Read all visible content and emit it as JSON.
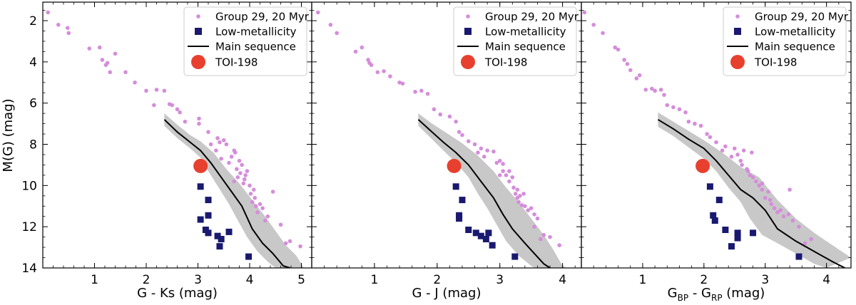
{
  "chart_data": [
    {
      "type": "scatter",
      "id": "panel-gks",
      "xlabel": "G - Ks (mag)",
      "ylabel": "M(G) (mag)",
      "xlim": [
        0,
        5.2
      ],
      "ylim": [
        14,
        1.1
      ],
      "xticks": [
        "1",
        "2",
        "3",
        "4",
        "5"
      ],
      "yticks": [
        "2",
        "4",
        "6",
        "8",
        "10",
        "12",
        "14"
      ],
      "legend": [
        "Group 29, 20 Myr",
        "Low-metallicity",
        "Main sequence",
        "TOI-198"
      ],
      "group29": [
        [
          0.1,
          1.6
        ],
        [
          0.3,
          2.2
        ],
        [
          0.48,
          2.35
        ],
        [
          0.5,
          2.6
        ],
        [
          0.9,
          3.35
        ],
        [
          1.1,
          3.3
        ],
        [
          1.15,
          3.9
        ],
        [
          1.22,
          4.15
        ],
        [
          1.25,
          4.05
        ],
        [
          1.3,
          4.5
        ],
        [
          1.4,
          3.6
        ],
        [
          1.6,
          4.5
        ],
        [
          1.78,
          5.0
        ],
        [
          2.0,
          5.4
        ],
        [
          2.2,
          5.35
        ],
        [
          2.15,
          6.1
        ],
        [
          2.35,
          5.4
        ],
        [
          2.45,
          6.05
        ],
        [
          2.5,
          6.1
        ],
        [
          2.6,
          6.3
        ],
        [
          2.65,
          6.45
        ],
        [
          2.75,
          6.9
        ],
        [
          3.02,
          7.0
        ],
        [
          3.02,
          6.75
        ],
        [
          3.2,
          7.4
        ],
        [
          3.25,
          8.0
        ],
        [
          3.35,
          8.3
        ],
        [
          3.38,
          7.7
        ],
        [
          3.42,
          7.9
        ],
        [
          3.45,
          8.7
        ],
        [
          3.5,
          7.8
        ],
        [
          3.55,
          8.0
        ],
        [
          3.6,
          8.9
        ],
        [
          3.65,
          8.6
        ],
        [
          3.7,
          8.3
        ],
        [
          3.72,
          8.4
        ],
        [
          3.75,
          9.2
        ],
        [
          3.77,
          9.6
        ],
        [
          3.8,
          8.8
        ],
        [
          3.82,
          9.4
        ],
        [
          3.85,
          9.0
        ],
        [
          3.88,
          9.9
        ],
        [
          3.9,
          9.7
        ],
        [
          3.95,
          9.3
        ],
        [
          4.0,
          10.0
        ],
        [
          4.02,
          10.4
        ],
        [
          4.05,
          10.8
        ],
        [
          4.08,
          10.2
        ],
        [
          4.12,
          11.0
        ],
        [
          4.15,
          11.3
        ],
        [
          4.2,
          10.9
        ],
        [
          4.25,
          11.1
        ],
        [
          4.3,
          11.7
        ],
        [
          4.35,
          11.5
        ],
        [
          4.45,
          10.3
        ],
        [
          4.6,
          11.9
        ],
        [
          4.7,
          12.8
        ],
        [
          4.78,
          12.7
        ],
        [
          4.98,
          12.95
        ],
        [
          3.92,
          9.5
        ],
        [
          4.1,
          10.6
        ],
        [
          3.7,
          9.8
        ]
      ],
      "low_metallicity": [
        [
          3.05,
          10.05
        ],
        [
          3.2,
          10.7
        ],
        [
          3.05,
          11.65
        ],
        [
          3.2,
          11.45
        ],
        [
          3.15,
          12.15
        ],
        [
          3.2,
          12.3
        ],
        [
          3.38,
          12.45
        ],
        [
          3.45,
          12.6
        ],
        [
          3.42,
          12.95
        ],
        [
          3.6,
          12.25
        ],
        [
          3.98,
          13.45
        ]
      ],
      "main_sequence": [
        [
          2.35,
          6.8
        ],
        [
          2.6,
          7.4
        ],
        [
          2.85,
          7.9
        ],
        [
          3.05,
          8.3
        ],
        [
          3.25,
          8.9
        ],
        [
          3.45,
          9.6
        ],
        [
          3.65,
          10.3
        ],
        [
          3.85,
          11.0
        ],
        [
          4.05,
          12.1
        ],
        [
          4.25,
          12.8
        ],
        [
          4.45,
          13.3
        ],
        [
          4.65,
          13.9
        ],
        [
          4.78,
          14.0
        ]
      ],
      "band_upper": [
        [
          2.35,
          6.5
        ],
        [
          2.6,
          7.05
        ],
        [
          2.85,
          7.55
        ],
        [
          3.05,
          7.85
        ],
        [
          3.3,
          8.4
        ],
        [
          3.55,
          9.2
        ],
        [
          3.8,
          9.9
        ],
        [
          4.05,
          10.7
        ],
        [
          4.3,
          11.5
        ],
        [
          4.5,
          12.2
        ],
        [
          4.7,
          12.9
        ],
        [
          4.9,
          13.4
        ],
        [
          5.05,
          14.0
        ]
      ],
      "band_lower": [
        [
          2.35,
          7.1
        ],
        [
          2.6,
          7.7
        ],
        [
          2.85,
          8.2
        ],
        [
          3.05,
          8.65
        ],
        [
          3.2,
          9.3
        ],
        [
          3.4,
          10.1
        ],
        [
          3.6,
          10.9
        ],
        [
          3.75,
          11.6
        ],
        [
          3.95,
          12.5
        ],
        [
          4.15,
          13.2
        ],
        [
          4.35,
          13.7
        ],
        [
          4.5,
          14.0
        ]
      ],
      "toi": [
        3.05,
        9.05
      ]
    },
    {
      "type": "scatter",
      "id": "panel-gj",
      "xlabel": "G - J (mag)",
      "ylabel": "",
      "xlim": [
        0,
        4.3
      ],
      "ylim": [
        14,
        1.1
      ],
      "xticks": [
        "1",
        "2",
        "3",
        "4"
      ],
      "yticks": [],
      "legend": [
        "Group 29, 20 Myr",
        "Low-metallicity",
        "Main sequence",
        "TOI-198"
      ],
      "group29": [
        [
          0.1,
          1.6
        ],
        [
          0.3,
          2.2
        ],
        [
          0.4,
          2.6
        ],
        [
          0.7,
          3.5
        ],
        [
          0.8,
          3.3
        ],
        [
          0.9,
          3.9
        ],
        [
          0.92,
          4.05
        ],
        [
          0.95,
          4.15
        ],
        [
          1.05,
          4.5
        ],
        [
          1.15,
          4.45
        ],
        [
          1.25,
          4.7
        ],
        [
          1.4,
          5.0
        ],
        [
          1.45,
          5.05
        ],
        [
          1.65,
          5.45
        ],
        [
          1.75,
          5.4
        ],
        [
          1.85,
          5.55
        ],
        [
          1.95,
          6.3
        ],
        [
          2.05,
          6.55
        ],
        [
          2.2,
          6.65
        ],
        [
          2.3,
          6.9
        ],
        [
          2.35,
          7.4
        ],
        [
          2.4,
          7.55
        ],
        [
          2.5,
          7.85
        ],
        [
          2.6,
          8.0
        ],
        [
          2.65,
          8.4
        ],
        [
          2.7,
          8.2
        ],
        [
          2.75,
          8.6
        ],
        [
          2.8,
          8.3
        ],
        [
          2.9,
          8.35
        ],
        [
          2.95,
          8.9
        ],
        [
          3.0,
          8.8
        ],
        [
          3.05,
          9.3
        ],
        [
          3.05,
          8.95
        ],
        [
          3.1,
          9.5
        ],
        [
          3.15,
          9.8
        ],
        [
          3.2,
          9.6
        ],
        [
          3.22,
          10.1
        ],
        [
          3.25,
          10.4
        ],
        [
          3.28,
          10.2
        ],
        [
          3.3,
          10.8
        ],
        [
          3.32,
          10.5
        ],
        [
          3.35,
          10.95
        ],
        [
          3.4,
          11.0
        ],
        [
          3.45,
          11.2
        ],
        [
          3.5,
          11.1
        ],
        [
          3.55,
          11.4
        ],
        [
          3.6,
          11.6
        ],
        [
          3.55,
          12.0
        ],
        [
          3.65,
          12.6
        ],
        [
          3.7,
          12.4
        ],
        [
          3.8,
          12.5
        ],
        [
          3.95,
          12.9
        ],
        [
          3.0,
          9.5
        ],
        [
          3.15,
          9.3
        ],
        [
          3.28,
          10.6
        ],
        [
          3.38,
          10.4
        ]
      ],
      "low_metallicity": [
        [
          2.3,
          10.05
        ],
        [
          2.4,
          10.7
        ],
        [
          2.35,
          11.45
        ],
        [
          2.35,
          11.6
        ],
        [
          2.5,
          12.15
        ],
        [
          2.62,
          12.3
        ],
        [
          2.7,
          12.45
        ],
        [
          2.78,
          12.6
        ],
        [
          2.82,
          12.3
        ],
        [
          2.88,
          12.9
        ],
        [
          3.24,
          13.45
        ]
      ],
      "main_sequence": [
        [
          1.7,
          6.8
        ],
        [
          1.9,
          7.35
        ],
        [
          2.1,
          7.9
        ],
        [
          2.3,
          8.4
        ],
        [
          2.5,
          9.0
        ],
        [
          2.7,
          9.8
        ],
        [
          2.9,
          10.6
        ],
        [
          3.05,
          11.4
        ],
        [
          3.2,
          12.1
        ],
        [
          3.4,
          12.8
        ],
        [
          3.55,
          13.3
        ],
        [
          3.7,
          13.8
        ],
        [
          3.8,
          14.0
        ]
      ],
      "band_upper": [
        [
          1.7,
          6.5
        ],
        [
          1.9,
          6.95
        ],
        [
          2.15,
          7.45
        ],
        [
          2.4,
          7.95
        ],
        [
          2.65,
          8.55
        ],
        [
          2.9,
          9.3
        ],
        [
          3.1,
          10.1
        ],
        [
          3.3,
          10.8
        ],
        [
          3.5,
          11.6
        ],
        [
          3.7,
          12.4
        ],
        [
          3.85,
          13.1
        ],
        [
          3.98,
          13.8
        ],
        [
          4.05,
          14.0
        ]
      ],
      "band_lower": [
        [
          1.7,
          7.1
        ],
        [
          1.9,
          7.7
        ],
        [
          2.1,
          8.3
        ],
        [
          2.3,
          8.9
        ],
        [
          2.5,
          9.6
        ],
        [
          2.65,
          10.4
        ],
        [
          2.8,
          11.1
        ],
        [
          2.95,
          11.9
        ],
        [
          3.1,
          12.7
        ],
        [
          3.3,
          13.4
        ],
        [
          3.5,
          13.9
        ],
        [
          3.55,
          14.0
        ]
      ],
      "toi": [
        2.27,
        9.05
      ]
    },
    {
      "type": "scatter",
      "id": "panel-bprp",
      "xlabel": "G_BP - G_RP (mag)",
      "ylabel": "",
      "xlim": [
        0,
        4.4
      ],
      "ylim": [
        14,
        1.1
      ],
      "xticks": [
        "1",
        "2",
        "3",
        "4"
      ],
      "yticks": [],
      "legend": [
        "Group 29, 20 Myr",
        "Low-metallicity",
        "Main sequence",
        "TOI-198"
      ],
      "group29": [
        [
          0.05,
          1.6
        ],
        [
          0.2,
          2.2
        ],
        [
          0.35,
          2.6
        ],
        [
          0.55,
          3.3
        ],
        [
          0.6,
          3.4
        ],
        [
          0.7,
          3.9
        ],
        [
          0.75,
          4.1
        ],
        [
          0.8,
          4.4
        ],
        [
          0.9,
          4.8
        ],
        [
          0.95,
          4.65
        ],
        [
          1.05,
          5.35
        ],
        [
          1.15,
          5.3
        ],
        [
          1.2,
          5.4
        ],
        [
          1.3,
          5.35
        ],
        [
          1.35,
          5.6
        ],
        [
          1.4,
          6.1
        ],
        [
          1.5,
          6.2
        ],
        [
          1.6,
          6.3
        ],
        [
          1.7,
          6.45
        ],
        [
          1.75,
          6.9
        ],
        [
          1.85,
          7.0
        ],
        [
          1.95,
          7.1
        ],
        [
          2.05,
          7.5
        ],
        [
          2.1,
          7.65
        ],
        [
          2.2,
          7.9
        ],
        [
          2.3,
          8.3
        ],
        [
          2.35,
          8.1
        ],
        [
          2.45,
          8.6
        ],
        [
          2.5,
          8.2
        ],
        [
          2.55,
          8.5
        ],
        [
          2.6,
          8.8
        ],
        [
          2.62,
          9.0
        ],
        [
          2.65,
          8.3
        ],
        [
          2.7,
          9.2
        ],
        [
          2.75,
          9.5
        ],
        [
          2.78,
          8.4
        ],
        [
          2.8,
          9.6
        ],
        [
          2.85,
          9.8
        ],
        [
          2.9,
          10.0
        ],
        [
          2.95,
          10.2
        ],
        [
          3.0,
          10.6
        ],
        [
          3.05,
          10.3
        ],
        [
          3.1,
          10.9
        ],
        [
          3.15,
          11.1
        ],
        [
          3.2,
          11.3
        ],
        [
          3.25,
          11.2
        ],
        [
          3.3,
          11.5
        ],
        [
          3.38,
          11.4
        ],
        [
          3.4,
          10.2
        ],
        [
          3.45,
          11.7
        ],
        [
          3.55,
          12.0
        ],
        [
          3.65,
          12.8
        ],
        [
          3.75,
          12.6
        ],
        [
          2.72,
          9.3
        ],
        [
          2.95,
          9.9
        ],
        [
          3.08,
          10.7
        ]
      ],
      "low_metallicity": [
        [
          2.1,
          10.05
        ],
        [
          2.25,
          10.7
        ],
        [
          2.15,
          11.45
        ],
        [
          2.18,
          11.7
        ],
        [
          2.35,
          12.15
        ],
        [
          2.55,
          12.3
        ],
        [
          2.55,
          12.55
        ],
        [
          2.45,
          12.95
        ],
        [
          2.8,
          12.3
        ],
        [
          3.55,
          13.45
        ]
      ],
      "main_sequence": [
        [
          1.25,
          6.8
        ],
        [
          1.5,
          7.25
        ],
        [
          1.75,
          7.75
        ],
        [
          2.0,
          8.2
        ],
        [
          2.2,
          8.8
        ],
        [
          2.4,
          9.5
        ],
        [
          2.6,
          10.2
        ],
        [
          2.8,
          10.6
        ],
        [
          3.0,
          11.2
        ],
        [
          3.2,
          12.1
        ],
        [
          3.5,
          12.7
        ],
        [
          3.8,
          13.2
        ],
        [
          4.1,
          13.7
        ],
        [
          4.3,
          14.0
        ]
      ],
      "band_upper": [
        [
          1.25,
          6.45
        ],
        [
          1.5,
          6.9
        ],
        [
          1.75,
          7.35
        ],
        [
          2.0,
          7.8
        ],
        [
          2.3,
          8.4
        ],
        [
          2.6,
          9.1
        ],
        [
          2.9,
          9.6
        ],
        [
          3.2,
          10.7
        ],
        [
          3.5,
          11.6
        ],
        [
          3.8,
          12.3
        ],
        [
          4.1,
          12.9
        ],
        [
          4.4,
          13.5
        ]
      ],
      "band_lower": [
        [
          1.25,
          7.15
        ],
        [
          1.5,
          7.6
        ],
        [
          1.75,
          8.15
        ],
        [
          2.0,
          8.7
        ],
        [
          2.2,
          9.3
        ],
        [
          2.4,
          10.1
        ],
        [
          2.6,
          10.8
        ],
        [
          2.75,
          11.6
        ],
        [
          2.95,
          12.4
        ],
        [
          3.2,
          12.8
        ],
        [
          3.5,
          13.3
        ],
        [
          3.8,
          13.8
        ],
        [
          4.0,
          14.0
        ]
      ],
      "toi": [
        1.98,
        9.05
      ]
    }
  ],
  "colors": {
    "group29": "#d58ddb",
    "low_metallicity": "#191970",
    "main_sequence": "#000000",
    "band": "#c8c8c8",
    "toi": "#e8402e"
  }
}
